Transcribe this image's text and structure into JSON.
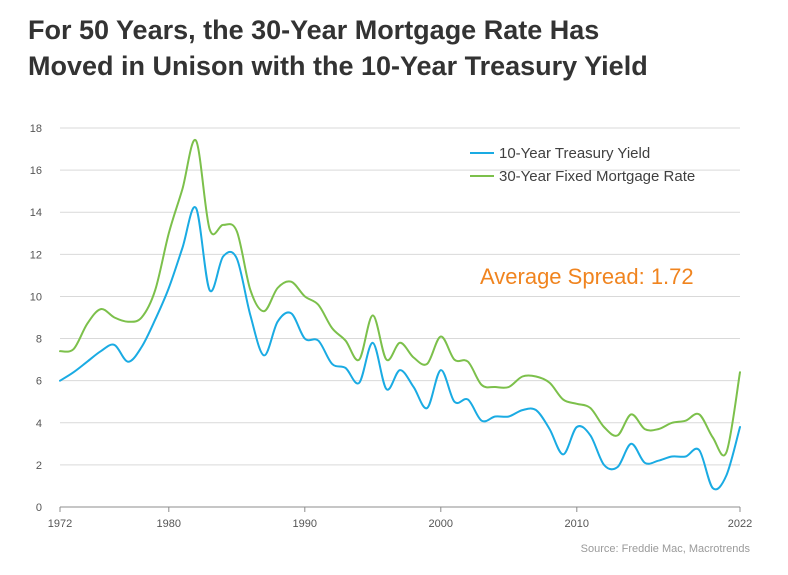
{
  "title": {
    "line1": "For 50 Years, the 30-Year Mortgage Rate Has",
    "line2": "Moved in Unison with the 10-Year Treasury Yield"
  },
  "annotation": "Average Spread: 1.72",
  "source": "Source: Freddie Mac, Macrotrends",
  "colors": {
    "treasury": "#1AABE3",
    "mortgage": "#7CC04B",
    "annotation": "#F0841F",
    "title": "#333333",
    "grid": "#d9d9d9"
  },
  "chart_data": {
    "type": "line",
    "title": "For 50 Years, the 30-Year Mortgage Rate Has Moved in Unison with the 10-Year Treasury Yield",
    "xlabel": "",
    "ylabel": "",
    "xlim": [
      1972,
      2022
    ],
    "ylim": [
      0,
      18
    ],
    "xticks": [
      1972,
      1980,
      1990,
      2000,
      2010,
      2022
    ],
    "yticks": [
      0,
      2,
      4,
      6,
      8,
      10,
      12,
      14,
      16,
      18
    ],
    "grid": true,
    "legend_position": "top-right",
    "series": [
      {
        "name": "10-Year Treasury Yield",
        "color": "#1AABE3",
        "x": [
          1972,
          1973,
          1974,
          1975,
          1976,
          1977,
          1978,
          1979,
          1980,
          1981,
          1982,
          1983,
          1984,
          1985,
          1986,
          1987,
          1988,
          1989,
          1990,
          1991,
          1992,
          1993,
          1994,
          1995,
          1996,
          1997,
          1998,
          1999,
          2000,
          2001,
          2002,
          2003,
          2004,
          2005,
          2006,
          2007,
          2008,
          2009,
          2010,
          2011,
          2012,
          2013,
          2014,
          2015,
          2016,
          2017,
          2018,
          2019,
          2020,
          2021,
          2022
        ],
        "values": [
          6.0,
          6.4,
          6.9,
          7.4,
          7.7,
          6.9,
          7.6,
          8.9,
          10.4,
          12.3,
          14.2,
          10.3,
          11.9,
          11.8,
          9.1,
          7.2,
          8.8,
          9.2,
          8.0,
          7.9,
          6.8,
          6.6,
          5.9,
          7.8,
          5.6,
          6.5,
          5.7,
          4.7,
          6.5,
          5.0,
          5.1,
          4.1,
          4.3,
          4.3,
          4.6,
          4.6,
          3.7,
          2.5,
          3.8,
          3.4,
          2.0,
          1.9,
          3.0,
          2.1,
          2.2,
          2.4,
          2.4,
          2.7,
          0.9,
          1.5,
          3.8
        ]
      },
      {
        "name": "30-Year Fixed Mortgage Rate",
        "color": "#7CC04B",
        "x": [
          1972,
          1973,
          1974,
          1975,
          1976,
          1977,
          1978,
          1979,
          1980,
          1981,
          1982,
          1983,
          1984,
          1985,
          1986,
          1987,
          1988,
          1989,
          1990,
          1991,
          1992,
          1993,
          1994,
          1995,
          1996,
          1997,
          1998,
          1999,
          2000,
          2001,
          2002,
          2003,
          2004,
          2005,
          2006,
          2007,
          2008,
          2009,
          2010,
          2011,
          2012,
          2013,
          2014,
          2015,
          2016,
          2017,
          2018,
          2019,
          2020,
          2021,
          2022
        ],
        "values": [
          7.4,
          7.5,
          8.7,
          9.4,
          9.0,
          8.8,
          9.0,
          10.3,
          13.0,
          15.1,
          17.4,
          13.2,
          13.4,
          13.1,
          10.3,
          9.3,
          10.4,
          10.7,
          10.0,
          9.6,
          8.5,
          7.9,
          7.0,
          9.1,
          7.0,
          7.8,
          7.1,
          6.8,
          8.1,
          7.0,
          6.9,
          5.8,
          5.7,
          5.7,
          6.2,
          6.2,
          5.9,
          5.1,
          4.9,
          4.7,
          3.8,
          3.4,
          4.4,
          3.7,
          3.7,
          4.0,
          4.1,
          4.4,
          3.3,
          2.6,
          6.4
        ]
      }
    ]
  }
}
